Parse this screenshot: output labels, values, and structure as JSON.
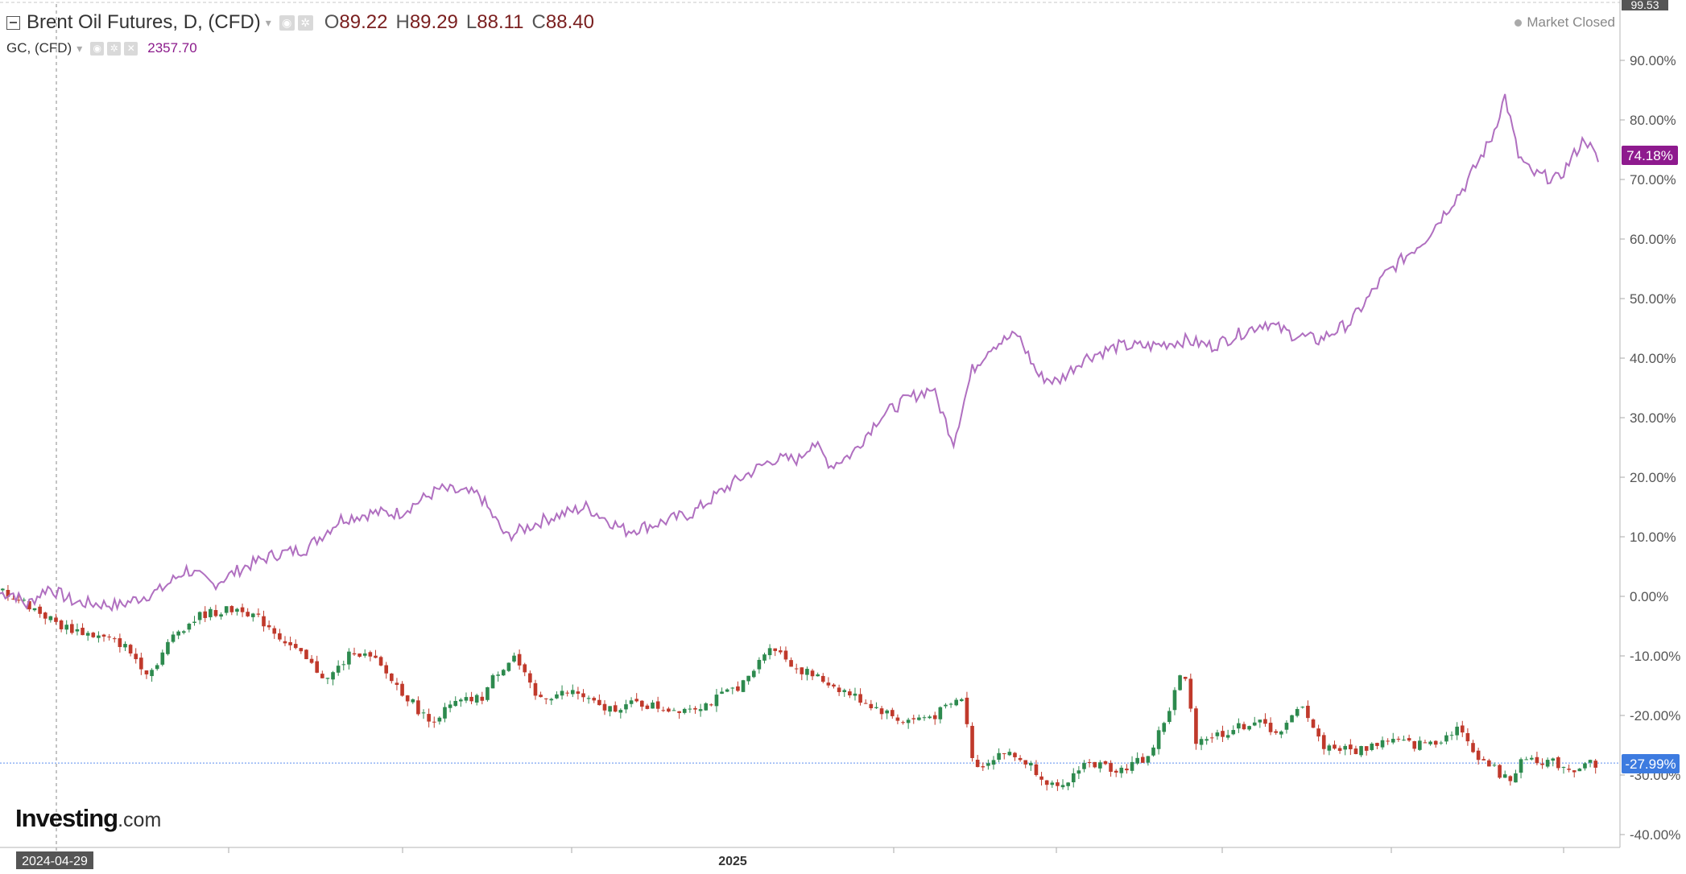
{
  "header": {
    "symbol1": {
      "name": "Brent Oil Futures, D, (CFD)",
      "o_label": "O",
      "o_value": "89.22",
      "h_label": "H",
      "h_value": "89.29",
      "l_label": "L",
      "l_value": "88.11",
      "c_label": "C",
      "c_value": "88.40"
    },
    "symbol2": {
      "name": "GC, (CFD)",
      "value": "2357.70"
    },
    "market_status": "Market Closed"
  },
  "logo": {
    "main": "Investing",
    "suffix": ".com"
  },
  "colors": {
    "gold_line": "#b06fc0",
    "gold_tag": "#8e1a8e",
    "up_candle": "#2d8a4e",
    "down_candle": "#c0392b",
    "crosshair": "#5b8def",
    "brent_tag": "#3d7be0"
  },
  "icons": [
    "collapse-icon",
    "caret-down-icon",
    "settings-icon",
    "gear-icon",
    "close-icon",
    "status-dot-icon"
  ],
  "chart_data": {
    "type": "line",
    "ylabel": "",
    "ylim": [
      -42,
      98
    ],
    "y_ticks": [
      "99.53",
      "90.00%",
      "80.00%",
      "70.00%",
      "60.00%",
      "50.00%",
      "40.00%",
      "30.00%",
      "20.00%",
      "10.00%",
      "0.00%",
      "-10.00%",
      "-20.00%",
      "-30.00%",
      "-40.00%"
    ],
    "x_labels": [
      "2024-04-29",
      "2025"
    ],
    "last_values": {
      "gold": "74.18%",
      "brent": "-27.99%"
    },
    "series": [
      {
        "name": "GC, (CFD)",
        "kind": "line",
        "anchors": [
          [
            0,
            0.5
          ],
          [
            5,
            0.5
          ],
          [
            10,
            -1.5
          ],
          [
            18,
            1.5
          ],
          [
            28,
            -1
          ],
          [
            45,
            -1.5
          ],
          [
            60,
            1
          ],
          [
            70,
            4.5
          ],
          [
            80,
            2
          ],
          [
            92,
            5
          ],
          [
            103,
            7
          ],
          [
            115,
            8
          ],
          [
            128,
            13
          ],
          [
            140,
            14
          ],
          [
            150,
            14
          ],
          [
            165,
            18
          ],
          [
            180,
            17
          ],
          [
            190,
            10
          ],
          [
            205,
            13
          ],
          [
            220,
            15
          ],
          [
            235,
            11
          ],
          [
            245,
            12
          ],
          [
            260,
            14
          ],
          [
            275,
            19
          ],
          [
            290,
            23
          ],
          [
            300,
            23
          ],
          [
            305,
            26
          ],
          [
            312,
            22
          ],
          [
            320,
            24
          ],
          [
            330,
            30
          ],
          [
            340,
            33
          ],
          [
            350,
            35
          ],
          [
            358,
            26
          ],
          [
            365,
            38
          ],
          [
            372,
            42
          ],
          [
            382,
            44
          ],
          [
            390,
            37
          ],
          [
            397,
            36
          ],
          [
            407,
            40
          ],
          [
            420,
            42
          ],
          [
            432,
            42
          ],
          [
            445,
            43
          ],
          [
            455,
            42
          ],
          [
            465,
            44
          ],
          [
            475,
            46
          ],
          [
            485,
            44
          ],
          [
            495,
            43
          ],
          [
            507,
            46
          ],
          [
            520,
            54
          ],
          [
            535,
            60
          ],
          [
            550,
            69
          ],
          [
            560,
            77
          ],
          [
            565,
            84
          ],
          [
            570,
            74
          ],
          [
            575,
            71
          ],
          [
            585,
            70
          ],
          [
            595,
            77
          ],
          [
            600,
            73
          ]
        ]
      },
      {
        "name": "Brent Oil Futures, D, (CFD)",
        "kind": "candlestick",
        "anchors": [
          [
            0,
            1
          ],
          [
            8,
            -1
          ],
          [
            15,
            -3
          ],
          [
            22,
            -5
          ],
          [
            30,
            -6
          ],
          [
            45,
            -8
          ],
          [
            55,
            -13
          ],
          [
            65,
            -6
          ],
          [
            75,
            -3
          ],
          [
            90,
            -2
          ],
          [
            100,
            -5
          ],
          [
            112,
            -10
          ],
          [
            122,
            -14
          ],
          [
            132,
            -9
          ],
          [
            140,
            -11
          ],
          [
            152,
            -17
          ],
          [
            160,
            -21
          ],
          [
            170,
            -18
          ],
          [
            180,
            -17
          ],
          [
            185,
            -13
          ],
          [
            192,
            -10
          ],
          [
            200,
            -17
          ],
          [
            215,
            -16
          ],
          [
            225,
            -19
          ],
          [
            238,
            -18
          ],
          [
            252,
            -19
          ],
          [
            265,
            -18
          ],
          [
            280,
            -14
          ],
          [
            288,
            -8
          ],
          [
            298,
            -12
          ],
          [
            312,
            -15
          ],
          [
            325,
            -18
          ],
          [
            338,
            -21
          ],
          [
            350,
            -20
          ],
          [
            360,
            -17
          ],
          [
            365,
            -29
          ],
          [
            375,
            -26
          ],
          [
            385,
            -28
          ],
          [
            397,
            -33
          ],
          [
            405,
            -28
          ],
          [
            420,
            -29
          ],
          [
            430,
            -27
          ],
          [
            438,
            -19
          ],
          [
            443,
            -12
          ],
          [
            448,
            -24
          ],
          [
            458,
            -23
          ],
          [
            470,
            -21
          ],
          [
            480,
            -23
          ],
          [
            488,
            -18
          ],
          [
            495,
            -25
          ],
          [
            508,
            -26
          ],
          [
            520,
            -24
          ],
          [
            530,
            -25
          ],
          [
            540,
            -24
          ],
          [
            546,
            -22
          ],
          [
            552,
            -26
          ],
          [
            560,
            -29
          ],
          [
            565,
            -31
          ],
          [
            572,
            -27
          ],
          [
            582,
            -28
          ],
          [
            590,
            -29
          ],
          [
            595,
            -28
          ]
        ]
      }
    ]
  }
}
